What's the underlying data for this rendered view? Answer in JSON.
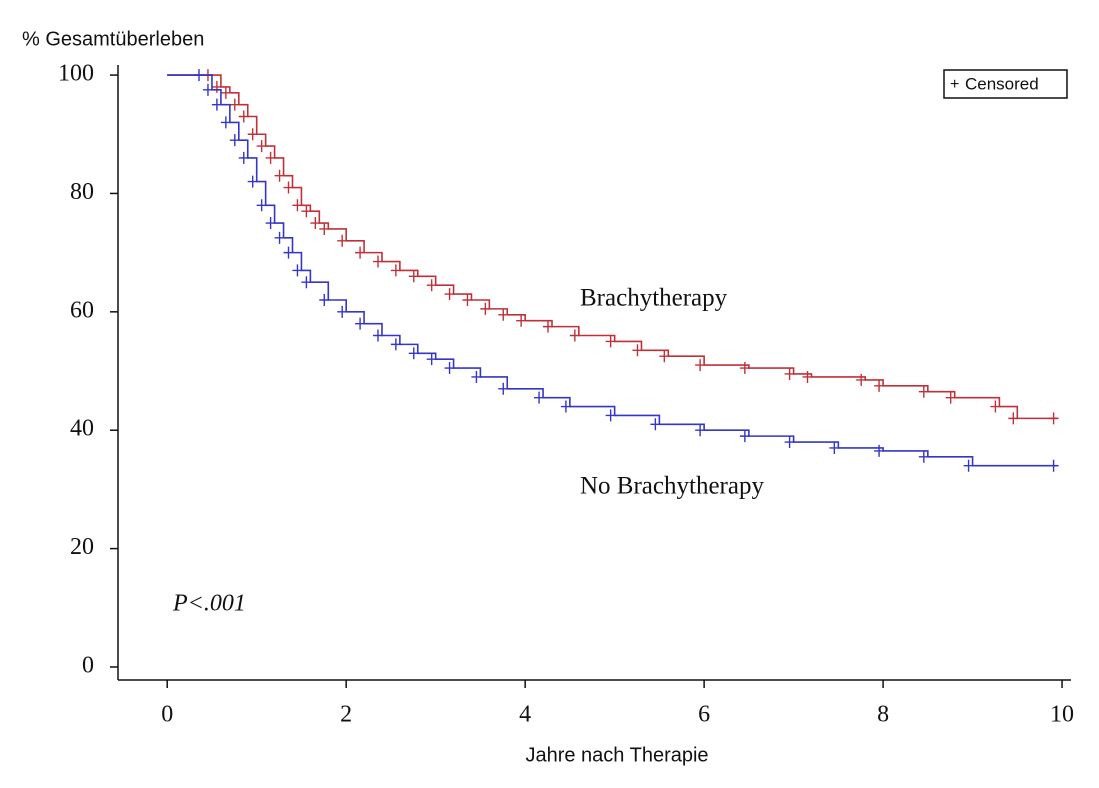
{
  "chart_data": {
    "type": "km",
    "ylabel": "% Gesamtüberleben",
    "xlabel": "Jahre nach Therapie",
    "annotation": "P<.001",
    "censor_label": "Censored",
    "xlim": [
      -0.55,
      10.1
    ],
    "xticks": [
      0,
      2,
      4,
      6,
      8,
      10
    ],
    "ylim": [
      -2.2,
      101.7
    ],
    "yticks": [
      0,
      20,
      40,
      60,
      80,
      100
    ],
    "series": [
      {
        "name": "Brachytherapy",
        "color": "#c0303a",
        "x": [
          0,
          0.5,
          0.6,
          0.7,
          0.8,
          0.9,
          1.0,
          1.1,
          1.2,
          1.3,
          1.4,
          1.5,
          1.6,
          1.7,
          1.8,
          2.0,
          2.2,
          2.4,
          2.6,
          2.8,
          3.0,
          3.2,
          3.4,
          3.6,
          3.8,
          4.0,
          4.3,
          4.6,
          5.0,
          5.3,
          5.6,
          6.0,
          6.5,
          7.0,
          7.2,
          7.8,
          8.0,
          8.5,
          8.8,
          9.3,
          9.5,
          9.95
        ],
        "values": [
          100,
          100,
          98,
          97,
          95,
          93,
          90,
          88,
          86,
          83,
          81,
          78,
          77,
          75,
          74,
          72,
          70,
          68.5,
          67,
          66,
          64.5,
          63,
          62,
          60.5,
          59.5,
          58.5,
          57.5,
          56,
          55,
          53.5,
          52.5,
          51,
          50.5,
          49.5,
          49,
          48.5,
          47.5,
          46.5,
          45.5,
          44,
          42,
          42
        ]
      },
      {
        "name": "No Brachytherapy",
        "color": "#3535c8",
        "x": [
          0,
          0.4,
          0.5,
          0.6,
          0.7,
          0.8,
          0.9,
          1.0,
          1.1,
          1.2,
          1.3,
          1.4,
          1.5,
          1.6,
          1.8,
          2.0,
          2.2,
          2.4,
          2.6,
          2.8,
          3.0,
          3.2,
          3.5,
          3.8,
          4.2,
          4.5,
          5.0,
          5.5,
          6.0,
          6.5,
          7.0,
          7.5,
          8.0,
          8.5,
          9.0,
          9.95
        ],
        "values": [
          100,
          100,
          97.5,
          95,
          92,
          89,
          86,
          82,
          78,
          75,
          72.5,
          70,
          67,
          65,
          62,
          60,
          58,
          56,
          54.5,
          53,
          52,
          50.5,
          49,
          47,
          45.5,
          44,
          42.5,
          41,
          40,
          39,
          38,
          37,
          36.5,
          35.5,
          34,
          34
        ]
      }
    ]
  }
}
